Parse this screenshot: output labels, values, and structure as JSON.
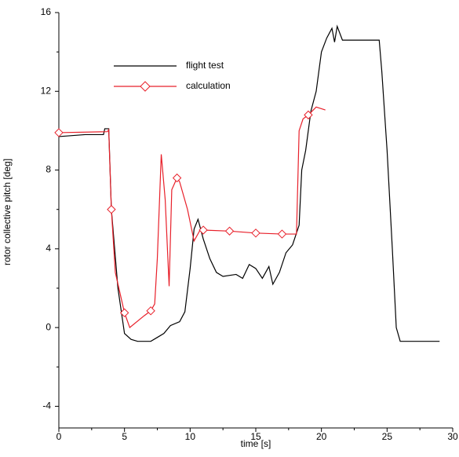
{
  "chart_data": {
    "type": "line",
    "xlabel": "time [s]",
    "ylabel": "rotor collective pitch [deg]",
    "xlim": [
      0,
      30
    ],
    "xticks": [
      0,
      5,
      10,
      15,
      20,
      25,
      30
    ],
    "ylim": [
      -5.1,
      16
    ],
    "yticks": [
      -4,
      0,
      4,
      8,
      12,
      16
    ],
    "legend": "upper left",
    "series": [
      {
        "name": "flight test",
        "color": "#000000",
        "x": [
          0,
          2,
          3.4,
          3.5,
          3.8,
          4.0,
          4.5,
          5,
          5.5,
          6,
          7,
          7.5,
          8,
          8.5,
          9.2,
          9.6,
          10,
          10.3,
          10.6,
          11,
          11.5,
          12,
          12.5,
          13.5,
          14,
          14.5,
          15,
          15.5,
          16,
          16.3,
          16.8,
          17.3,
          17.8,
          18.3,
          18.5,
          18.8,
          19.2,
          19.6,
          20,
          20.4,
          20.8,
          21,
          21.2,
          21.6,
          22,
          24.4,
          24.6,
          25,
          25.4,
          25.7,
          26,
          29
        ],
        "values": [
          9.7,
          9.8,
          9.8,
          10.1,
          10.1,
          6,
          2,
          -0.3,
          -0.6,
          -0.7,
          -0.7,
          -0.5,
          -0.3,
          0.1,
          0.3,
          0.8,
          3,
          5,
          5.5,
          4.5,
          3.5,
          2.8,
          2.6,
          2.7,
          2.5,
          3.2,
          3.0,
          2.5,
          3.1,
          2.2,
          2.8,
          3.8,
          4.2,
          5.2,
          8,
          9,
          11,
          12,
          14,
          14.7,
          15.2,
          14.5,
          15.3,
          14.6,
          14.6,
          14.6,
          13,
          9,
          4,
          0,
          -0.7,
          -0.7
        ]
      },
      {
        "name": "calculation",
        "color": "#e8202a",
        "x": [
          0,
          3.7,
          3.8,
          4.0,
          4.3,
          5,
          5.4,
          6.5,
          7,
          7.3,
          7.5,
          7.8,
          8.1,
          8.4,
          8.6,
          9,
          9.2,
          9.8,
          10.3,
          10.8,
          11,
          13,
          15,
          17,
          18.1,
          18.3,
          18.6,
          19,
          19.6,
          20.3
        ],
        "values": [
          9.9,
          9.95,
          10.05,
          6,
          2.8,
          0.75,
          0,
          0.6,
          0.85,
          1.2,
          3.5,
          8.8,
          6.5,
          2.1,
          7.0,
          7.6,
          7.4,
          6.0,
          4.4,
          5.0,
          4.95,
          4.9,
          4.8,
          4.75,
          4.75,
          10.0,
          10.6,
          10.8,
          11.2,
          11.05
        ]
      }
    ]
  }
}
